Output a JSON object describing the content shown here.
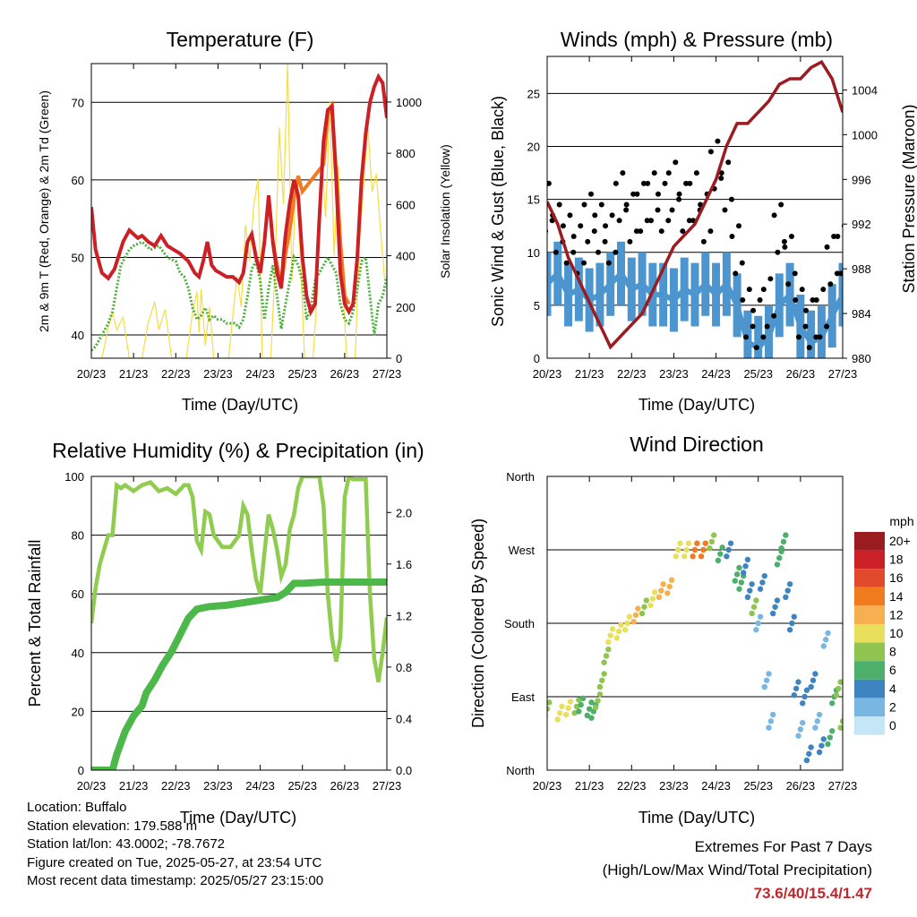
{
  "info": {
    "location": "Location: Buffalo",
    "elevation": "Station elevation: 179.588 m",
    "latlon": "Station lat/lon: 43.0002; -78.7672",
    "created": "Figure created on Tue, 2025-05-27, at 23:54 UTC",
    "latest": "Most recent data timestamp: 2025/05/27 23:15:00"
  },
  "extremes": {
    "title": "Extremes For Past 7 Days",
    "subtitle": "(High/Low/Max Wind/Total Precipitation)",
    "values": "73.6/40/15.4/1.47"
  },
  "colors": {
    "temp_9m": "#cc2027",
    "temp_2m": "#f07a1e",
    "dewpoint": "#4caf3c",
    "solar": "#f5dd45",
    "wind": "#4c95cf",
    "gust": "#000000",
    "pressure": "#9b1c20",
    "rh": "#8fcc4f",
    "precip": "#4cb84a"
  },
  "chart_data": [
    {
      "type": "line",
      "title": "Temperature (F)",
      "xlabel": "Time (Day/UTC)",
      "ylabel": "2m & 9m T (Red, Orange) & 2m Td (Green)",
      "y2label": "Solar Insolation (Yellow)",
      "x_ticks": [
        "20/23",
        "21/23",
        "22/23",
        "23/23",
        "24/23",
        "25/23",
        "26/23",
        "27/23"
      ],
      "xlim": [
        0,
        7
      ],
      "ylim": [
        37,
        75
      ],
      "y2lim": [
        0,
        1150
      ],
      "y_ticks": [
        40,
        50,
        60,
        70
      ],
      "y2_ticks": [
        0,
        200,
        400,
        600,
        800,
        1000
      ],
      "series": [
        {
          "name": "9m T",
          "color": "#cc2027",
          "x": [
            0,
            0.1,
            0.25,
            0.4,
            0.55,
            0.75,
            0.9,
            1,
            1.1,
            1.2,
            1.35,
            1.5,
            1.65,
            1.8,
            1.95,
            2.1,
            2.3,
            2.45,
            2.55,
            2.65,
            2.75,
            2.85,
            2.95,
            3.05,
            3.2,
            3.35,
            3.5,
            3.6,
            3.7,
            3.8,
            3.9,
            4,
            4.1,
            4.2,
            4.3,
            4.4,
            4.5,
            4.55,
            4.6,
            4.7,
            4.8,
            4.9,
            5,
            5.1,
            5.2,
            5.3,
            5.4,
            5.5,
            5.6,
            5.7,
            5.8,
            5.9,
            6,
            6.1,
            6.2,
            6.3,
            6.4,
            6.5,
            6.6,
            6.7,
            6.8,
            6.9,
            7
          ],
          "y": [
            56.5,
            51,
            48,
            47.3,
            48.5,
            52,
            53.5,
            53,
            52.5,
            52.8,
            52,
            51.5,
            52.8,
            51.5,
            51,
            50.5,
            49.5,
            48,
            47.5,
            49.5,
            52,
            49,
            48.3,
            48,
            47.5,
            47.5,
            46.8,
            48,
            52,
            53,
            50,
            48,
            52,
            58,
            52,
            48,
            46,
            50,
            53,
            57,
            60,
            58,
            50,
            45,
            43,
            44,
            55,
            65,
            69,
            69.5,
            60,
            48,
            44,
            43,
            44,
            50,
            60,
            66,
            70,
            72,
            73.3,
            72.5,
            68
          ]
        },
        {
          "name": "2m T",
          "color": "#f07a1e",
          "x": [
            4.3,
            4.4,
            4.5,
            4.6,
            4.7,
            4.8,
            4.9,
            5,
            5.5,
            5.6,
            5.7,
            5.8,
            5.9,
            6,
            6.1
          ],
          "y": [
            52,
            49,
            46.5,
            50.5,
            53.5,
            57.5,
            60.5,
            58.5,
            62,
            68.5,
            69.5,
            61,
            52,
            45,
            44
          ]
        },
        {
          "name": "2m Td",
          "color": "#4caf3c",
          "x": [
            0,
            0.1,
            0.2,
            0.3,
            0.4,
            0.5,
            0.6,
            0.7,
            0.8,
            0.9,
            1,
            1.2,
            1.4,
            1.6,
            1.8,
            2,
            2.1,
            2.2,
            2.3,
            2.4,
            2.5,
            2.6,
            2.7,
            2.8,
            2.9,
            3,
            3.1,
            3.2,
            3.3,
            3.4,
            3.5,
            3.6,
            3.7,
            3.8,
            3.9,
            4,
            4.1,
            4.2,
            4.3,
            4.4,
            4.5,
            4.6,
            4.7,
            4.8,
            4.9,
            5,
            5.1,
            5.2,
            5.3,
            5.4,
            5.5,
            5.6,
            5.7,
            5.8,
            5.9,
            6,
            6.1,
            6.2,
            6.3,
            6.4,
            6.5,
            6.6,
            6.7,
            6.8,
            6.9,
            7
          ],
          "y": [
            38,
            38.5,
            39.5,
            40.5,
            41.5,
            43,
            46,
            49,
            50,
            51,
            51.5,
            52,
            51,
            51.5,
            50,
            49.5,
            48,
            47.5,
            46,
            43.5,
            42,
            42.5,
            43.5,
            42,
            42.5,
            42,
            42,
            41.5,
            41.5,
            41.5,
            41,
            42,
            45,
            48.5,
            49.5,
            47,
            42,
            46,
            49,
            45,
            40.8,
            44,
            47,
            50,
            49,
            47,
            42,
            43.5,
            47,
            48,
            49,
            50,
            49,
            48,
            44,
            42,
            41.5,
            43,
            46,
            49.5,
            50,
            45,
            40,
            44,
            45,
            47.5
          ]
        },
        {
          "name": "Solar",
          "color": "#f5dd45",
          "x": [
            0.25,
            0.4,
            0.5,
            0.6,
            0.75,
            0.9,
            1.2,
            1.35,
            1.5,
            1.6,
            1.75,
            1.9,
            2.25,
            2.4,
            2.5,
            2.55,
            2.6,
            2.7,
            2.8,
            2.9,
            3.25,
            3.35,
            3.45,
            3.55,
            3.65,
            3.75,
            3.85,
            3.95,
            4.05,
            4.25,
            4.35,
            4.45,
            4.55,
            4.65,
            4.75,
            4.85,
            4.95,
            5.05,
            5.25,
            5.35,
            5.45,
            5.55,
            5.65,
            5.75,
            5.85,
            5.95,
            6.05,
            6.25,
            6.35,
            6.45,
            6.55,
            6.65,
            6.75,
            6.85,
            6.95
          ],
          "y": [
            0,
            120,
            180,
            110,
            160,
            0,
            0,
            140,
            220,
            110,
            190,
            0,
            0,
            180,
            260,
            100,
            270,
            50,
            200,
            0,
            0,
            160,
            320,
            200,
            520,
            380,
            600,
            700,
            0,
            0,
            350,
            900,
            600,
            1150,
            300,
            700,
            400,
            0,
            0,
            250,
            800,
            550,
            1000,
            400,
            750,
            300,
            0,
            0,
            450,
            680,
            900,
            650,
            720,
            500,
            300
          ]
        }
      ]
    },
    {
      "type": "scatter",
      "title": "Winds (mph) & Pressure (mb)",
      "xlabel": "Time (Day/UTC)",
      "ylabel": "Sonic Wind & Gust (Blue, Black)",
      "y2label": "Station Pressure (Maroon)",
      "x_ticks": [
        "20/23",
        "21/23",
        "22/23",
        "23/23",
        "24/23",
        "25/23",
        "26/23",
        "27/23"
      ],
      "xlim": [
        0,
        7
      ],
      "ylim": [
        0,
        28.5
      ],
      "y2lim": [
        980,
        1007
      ],
      "y_ticks": [
        0,
        5,
        10,
        15,
        20,
        25
      ],
      "y2_ticks": [
        980,
        984,
        988,
        992,
        996,
        1000,
        1004
      ],
      "series": [
        {
          "name": "Wind",
          "color": "#4c95cf",
          "x": [
            0,
            0.25,
            0.5,
            0.75,
            1,
            1.25,
            1.5,
            1.75,
            2,
            2.25,
            2.5,
            2.75,
            3,
            3.25,
            3.5,
            3.75,
            4,
            4.25,
            4.5,
            4.75,
            5,
            5.25,
            5.5,
            5.75,
            6,
            6.25,
            6.5,
            6.75,
            7
          ],
          "y": [
            7,
            8,
            6,
            6.5,
            5.5,
            6,
            7,
            8,
            6.5,
            7,
            6,
            6,
            5.5,
            6.5,
            6,
            7,
            6,
            7,
            5,
            1.5,
            1,
            2,
            5,
            6,
            3,
            1.5,
            2,
            4,
            6
          ]
        },
        {
          "name": "Gust",
          "color": "#000000",
          "x": [
            0,
            0.25,
            0.5,
            0.75,
            1,
            1.25,
            1.5,
            1.75,
            2,
            2.25,
            2.5,
            2.75,
            3,
            3.25,
            3.5,
            3.75,
            4,
            4.25,
            4.5,
            4.75,
            5,
            5.25,
            5.5,
            5.75,
            6,
            6.25,
            6.5,
            6.75,
            7
          ],
          "y": [
            14,
            12,
            11,
            10,
            13,
            12,
            11,
            15,
            13,
            14,
            15,
            14,
            16,
            14,
            15,
            13,
            18,
            16,
            10,
            4,
            3,
            5,
            12,
            9,
            4,
            3,
            4,
            9,
            10
          ]
        },
        {
          "name": "Pressure",
          "color": "#9b1c20",
          "x": [
            0,
            0.25,
            0.5,
            0.75,
            1,
            1.25,
            1.5,
            1.75,
            2,
            2.25,
            2.5,
            2.75,
            3,
            3.25,
            3.5,
            3.75,
            4,
            4.25,
            4.5,
            4.75,
            5,
            5.25,
            5.5,
            5.75,
            6,
            6.25,
            6.5,
            6.75,
            7
          ],
          "y": [
            994,
            992,
            989,
            987,
            985,
            983,
            981,
            982,
            983,
            984,
            986,
            988,
            990,
            991,
            992,
            994,
            996,
            999,
            1001,
            1001,
            1002,
            1003,
            1004.5,
            1005,
            1005,
            1006,
            1006.5,
            1005,
            1002
          ]
        }
      ]
    },
    {
      "type": "line",
      "title": "Relative Humidity (%) & Precipitation (in)",
      "xlabel": "Time (Day/UTC)",
      "ylabel": "Percent & Total Rainfall",
      "x_ticks": [
        "20/23",
        "21/23",
        "22/23",
        "23/23",
        "24/23",
        "25/23",
        "26/23",
        "27/23"
      ],
      "xlim": [
        0,
        7
      ],
      "ylim": [
        0,
        100
      ],
      "y2lim": [
        0,
        2.28
      ],
      "y_ticks": [
        0,
        20,
        40,
        60,
        80,
        100
      ],
      "y2_ticks": [
        0.0,
        0.4,
        0.8,
        1.2,
        1.6,
        2.0
      ],
      "series": [
        {
          "name": "RH",
          "color": "#8fcc4f",
          "x": [
            0,
            0.1,
            0.2,
            0.3,
            0.4,
            0.5,
            0.6,
            0.7,
            0.8,
            1,
            1.2,
            1.4,
            1.6,
            1.8,
            2,
            2.2,
            2.3,
            2.4,
            2.5,
            2.6,
            2.7,
            2.8,
            2.9,
            3.1,
            3.3,
            3.5,
            3.6,
            3.7,
            3.8,
            3.9,
            4,
            4.1,
            4.2,
            4.3,
            4.4,
            4.5,
            4.6,
            4.7,
            4.8,
            4.9,
            5,
            5.2,
            5.4,
            5.5,
            5.6,
            5.7,
            5.8,
            5.9,
            6,
            6.1,
            6.2,
            6.3,
            6.4,
            6.5,
            6.6,
            6.7,
            6.8,
            6.9,
            7
          ],
          "y": [
            50,
            62,
            70,
            75,
            80,
            80,
            97,
            96,
            97,
            95,
            97,
            98,
            95,
            96,
            94,
            97,
            97,
            93,
            78,
            75,
            88,
            87,
            80,
            76,
            76,
            80,
            90,
            87,
            75,
            65,
            60,
            74,
            87,
            82,
            75,
            66,
            70,
            82,
            87,
            96,
            100,
            100,
            100,
            90,
            60,
            45,
            37,
            45,
            93,
            100,
            99,
            99,
            99,
            99,
            60,
            38,
            30,
            40,
            52
          ]
        },
        {
          "name": "Precip",
          "color": "#4cb84a",
          "x": [
            0,
            0.3,
            0.5,
            0.6,
            0.8,
            1,
            1.2,
            1.3,
            1.5,
            1.7,
            1.9,
            2.1,
            2.3,
            2.5,
            2.8,
            3.2,
            3.6,
            4.0,
            4.4,
            4.6,
            4.8,
            5.0,
            5.5,
            6.0,
            6.5,
            7
          ],
          "y": [
            0,
            0,
            0,
            0.12,
            0.3,
            0.42,
            0.5,
            0.6,
            0.7,
            0.82,
            0.92,
            1.05,
            1.18,
            1.25,
            1.27,
            1.28,
            1.3,
            1.32,
            1.34,
            1.38,
            1.45,
            1.45,
            1.46,
            1.46,
            1.46,
            1.46
          ]
        }
      ]
    },
    {
      "type": "scatter",
      "title": "Wind Direction",
      "xlabel": "Time (Day/UTC)",
      "ylabel": "Direction (Colored By Speed)",
      "x_ticks": [
        "20/23",
        "21/23",
        "22/23",
        "23/23",
        "24/23",
        "25/23",
        "26/23",
        "27/23"
      ],
      "xlim": [
        0,
        7
      ],
      "ylim": [
        0,
        360
      ],
      "y_ticks": [
        "North",
        "East",
        "South",
        "West",
        "North"
      ],
      "legend_title": "mph",
      "legend_labels": [
        "20+",
        "18",
        "16",
        "14",
        "12",
        "10",
        "8",
        "6",
        "4",
        "2",
        "0"
      ],
      "legend_colors": [
        "#9b1c20",
        "#cc2027",
        "#e24a2c",
        "#f07a1e",
        "#f7b050",
        "#e8e05c",
        "#8ec44f",
        "#4caf6a",
        "#3d84c0",
        "#7ab6e2",
        "#c4e6f6"
      ],
      "x": [
        0,
        0.3,
        0.5,
        0.7,
        0.8,
        1,
        1.1,
        1.2,
        1.3,
        1.4,
        1.5,
        1.7,
        1.9,
        2.1,
        2.3,
        2.5,
        2.7,
        2.9,
        3.1,
        3.3,
        3.5,
        3.7,
        3.9,
        4.1,
        4.3,
        4.5,
        4.6,
        4.7,
        4.8,
        4.9,
        5,
        5.1,
        5.2,
        5.3,
        5.4,
        5.5,
        5.6,
        5.7,
        5.8,
        5.9,
        6,
        6.1,
        6.2,
        6.3,
        6.4,
        6.5,
        6.6,
        6.7,
        6.8,
        6.9,
        7
      ],
      "y": [
        75,
        70,
        76,
        78,
        80,
        75,
        72,
        85,
        110,
        140,
        165,
        170,
        180,
        190,
        200,
        210,
        220,
        225,
        270,
        270,
        270,
        270,
        280,
        265,
        270,
        240,
        230,
        250,
        220,
        200,
        180,
        230,
        110,
        60,
        200,
        260,
        280,
        220,
        180,
        100,
        50,
        90,
        20,
        110,
        60,
        30,
        160,
        40,
        90,
        100,
        60
      ],
      "speed": [
        8,
        10,
        9,
        7,
        6,
        5,
        6,
        8,
        7,
        8,
        9,
        10,
        10,
        11,
        8,
        10,
        12,
        12,
        9,
        10,
        13,
        14,
        8,
        5,
        4,
        5,
        6,
        3,
        4,
        8,
        2,
        3,
        1,
        1,
        3,
        6,
        5,
        3,
        4,
        3,
        2,
        3,
        4,
        3,
        2,
        3,
        2,
        5,
        6,
        7,
        8
      ]
    }
  ]
}
